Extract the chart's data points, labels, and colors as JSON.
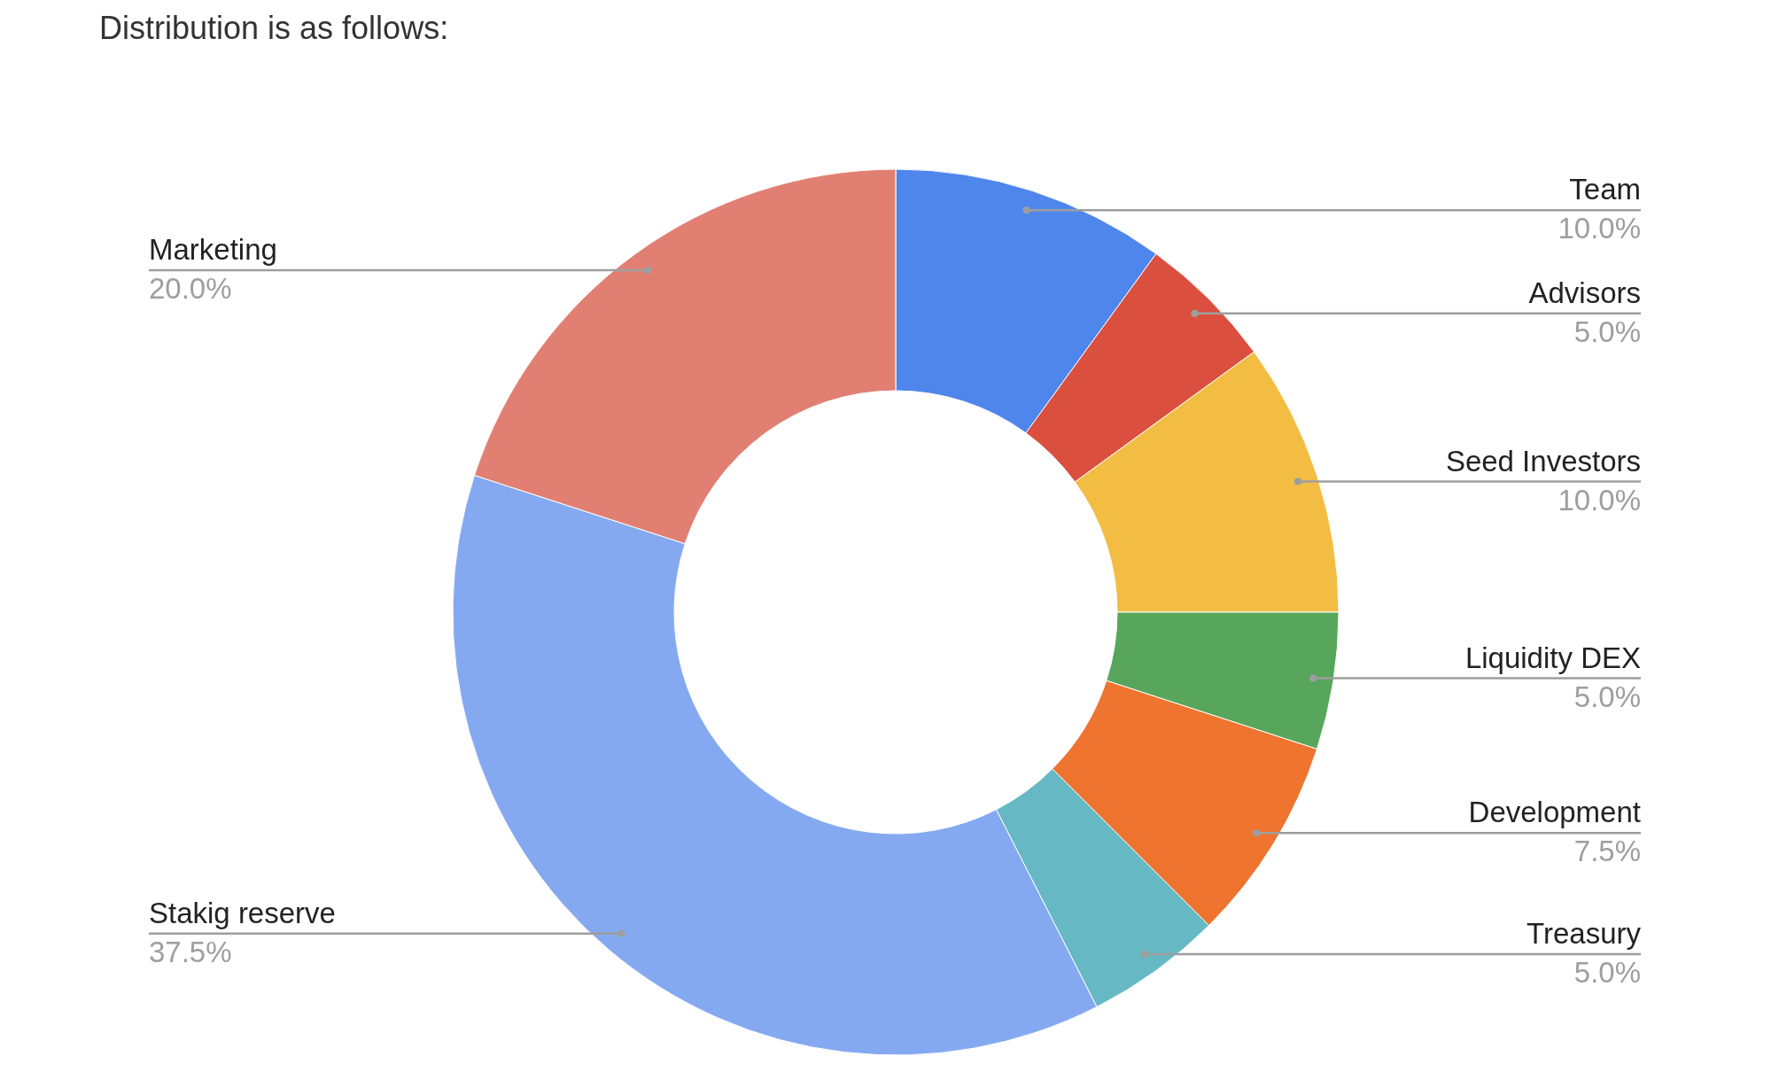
{
  "chart_data": {
    "type": "donut",
    "title": "Distribution is as follows:",
    "categories": [
      "Team",
      "Advisors",
      "Seed Investors",
      "Liquidity DEX",
      "Development",
      "Treasury",
      "Stakig reserve",
      "Marketing"
    ],
    "values": [
      10.0,
      5.0,
      10.0,
      5.0,
      7.5,
      5.0,
      37.5,
      20.0
    ],
    "value_labels": [
      "10.0%",
      "5.0%",
      "10.0%",
      "5.0%",
      "7.5%",
      "5.0%",
      "37.5%",
      "20.0%"
    ],
    "colors": [
      "#4f86ec",
      "#db4f3f",
      "#f2bd42",
      "#58a65c",
      "#ee7430",
      "#66b9c4",
      "#85a9f1",
      "#e18072"
    ]
  }
}
